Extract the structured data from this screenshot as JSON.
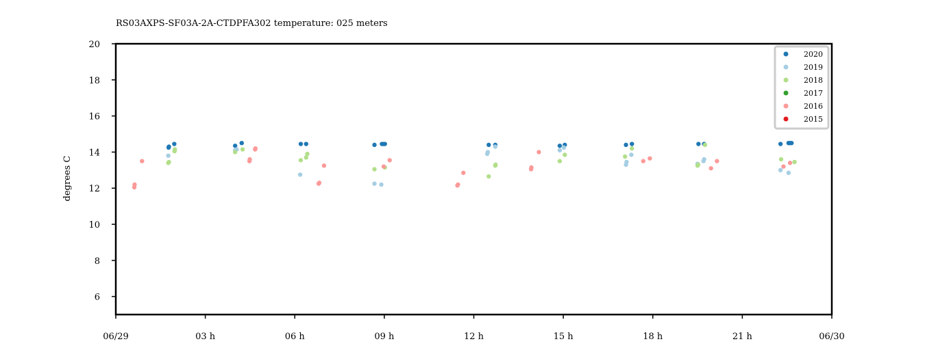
{
  "chart_data": {
    "type": "scatter",
    "title": "RS03AXPS-SF03A-2A-CTDPFA302 temperature: 025 meters",
    "xlabel": "",
    "ylabel": "degrees C",
    "x_units": "hours since 06/29 00:00",
    "xlim": [
      0,
      24
    ],
    "ylim": [
      5,
      20
    ],
    "x_ticks": [
      {
        "value": 0,
        "label": "06/29"
      },
      {
        "value": 3,
        "label": "03 h"
      },
      {
        "value": 6,
        "label": "06 h"
      },
      {
        "value": 9,
        "label": "09 h"
      },
      {
        "value": 12,
        "label": "12 h"
      },
      {
        "value": 15,
        "label": "15 h"
      },
      {
        "value": 18,
        "label": "18 h"
      },
      {
        "value": 21,
        "label": "21 h"
      },
      {
        "value": 24,
        "label": "06/30"
      }
    ],
    "y_ticks": [
      6,
      8,
      10,
      12,
      14,
      16,
      18,
      20
    ],
    "grid": false,
    "legend_position": "top-right",
    "series": [
      {
        "name": "2020",
        "color": "#1f78b4",
        "points": [
          [
            1.77,
            14.25
          ],
          [
            1.78,
            14.3
          ],
          [
            1.96,
            14.45
          ],
          [
            4.0,
            14.35
          ],
          [
            4.22,
            14.5
          ],
          [
            6.2,
            14.45
          ],
          [
            6.38,
            14.45
          ],
          [
            8.67,
            14.4
          ],
          [
            8.92,
            14.45
          ],
          [
            8.97,
            14.45
          ],
          [
            9.02,
            14.45
          ],
          [
            12.5,
            14.4
          ],
          [
            12.72,
            14.4
          ],
          [
            14.88,
            14.35
          ],
          [
            15.05,
            14.4
          ],
          [
            17.1,
            14.4
          ],
          [
            17.3,
            14.45
          ],
          [
            19.53,
            14.45
          ],
          [
            19.72,
            14.45
          ],
          [
            22.28,
            14.45
          ],
          [
            22.55,
            14.5
          ],
          [
            22.6,
            14.5
          ],
          [
            22.65,
            14.5
          ]
        ]
      },
      {
        "name": "2019",
        "color": "#a6cee3",
        "points": [
          [
            1.76,
            13.8
          ],
          [
            4.0,
            14.1
          ],
          [
            4.05,
            14.15
          ],
          [
            6.18,
            12.75
          ],
          [
            8.67,
            12.25
          ],
          [
            8.9,
            12.2
          ],
          [
            12.45,
            13.9
          ],
          [
            12.47,
            14.0
          ],
          [
            12.72,
            14.3
          ],
          [
            14.88,
            14.1
          ],
          [
            15.02,
            14.25
          ],
          [
            17.1,
            13.3
          ],
          [
            17.12,
            13.45
          ],
          [
            17.28,
            13.85
          ],
          [
            19.5,
            13.35
          ],
          [
            19.7,
            13.5
          ],
          [
            19.72,
            13.6
          ],
          [
            22.28,
            13.0
          ],
          [
            22.55,
            12.85
          ]
        ]
      },
      {
        "name": "2018",
        "color": "#b2df8a",
        "points": [
          [
            1.76,
            13.4
          ],
          [
            1.78,
            13.45
          ],
          [
            1.97,
            14.05
          ],
          [
            1.98,
            14.15
          ],
          [
            4.0,
            14.0
          ],
          [
            4.25,
            14.15
          ],
          [
            6.2,
            13.55
          ],
          [
            6.38,
            13.7
          ],
          [
            6.42,
            13.9
          ],
          [
            8.67,
            13.05
          ],
          [
            9.02,
            13.15
          ],
          [
            12.5,
            12.65
          ],
          [
            12.72,
            13.25
          ],
          [
            12.73,
            13.3
          ],
          [
            14.88,
            13.5
          ],
          [
            15.05,
            13.85
          ],
          [
            17.07,
            13.75
          ],
          [
            17.3,
            14.2
          ],
          [
            19.5,
            13.25
          ],
          [
            19.52,
            13.3
          ],
          [
            19.75,
            14.4
          ],
          [
            22.3,
            13.6
          ],
          [
            22.75,
            13.45
          ]
        ]
      },
      {
        "name": "2017",
        "color": "#33a02c",
        "points": []
      },
      {
        "name": "2016",
        "color": "#fb9a99",
        "points": [
          [
            0.62,
            12.05
          ],
          [
            0.63,
            12.2
          ],
          [
            0.88,
            13.5
          ],
          [
            4.48,
            13.5
          ],
          [
            4.49,
            13.6
          ],
          [
            4.67,
            14.15
          ],
          [
            4.68,
            14.2
          ],
          [
            6.8,
            12.25
          ],
          [
            6.82,
            12.3
          ],
          [
            6.98,
            13.25
          ],
          [
            8.98,
            13.2
          ],
          [
            9.18,
            13.55
          ],
          [
            11.45,
            12.15
          ],
          [
            11.47,
            12.2
          ],
          [
            11.65,
            12.85
          ],
          [
            13.92,
            13.05
          ],
          [
            13.93,
            13.15
          ],
          [
            14.18,
            14.0
          ],
          [
            17.68,
            13.5
          ],
          [
            17.9,
            13.65
          ],
          [
            19.95,
            13.1
          ],
          [
            20.15,
            13.5
          ],
          [
            22.38,
            13.2
          ],
          [
            22.6,
            13.4
          ]
        ]
      },
      {
        "name": "2015",
        "color": "#e31a1c",
        "points": []
      }
    ]
  }
}
